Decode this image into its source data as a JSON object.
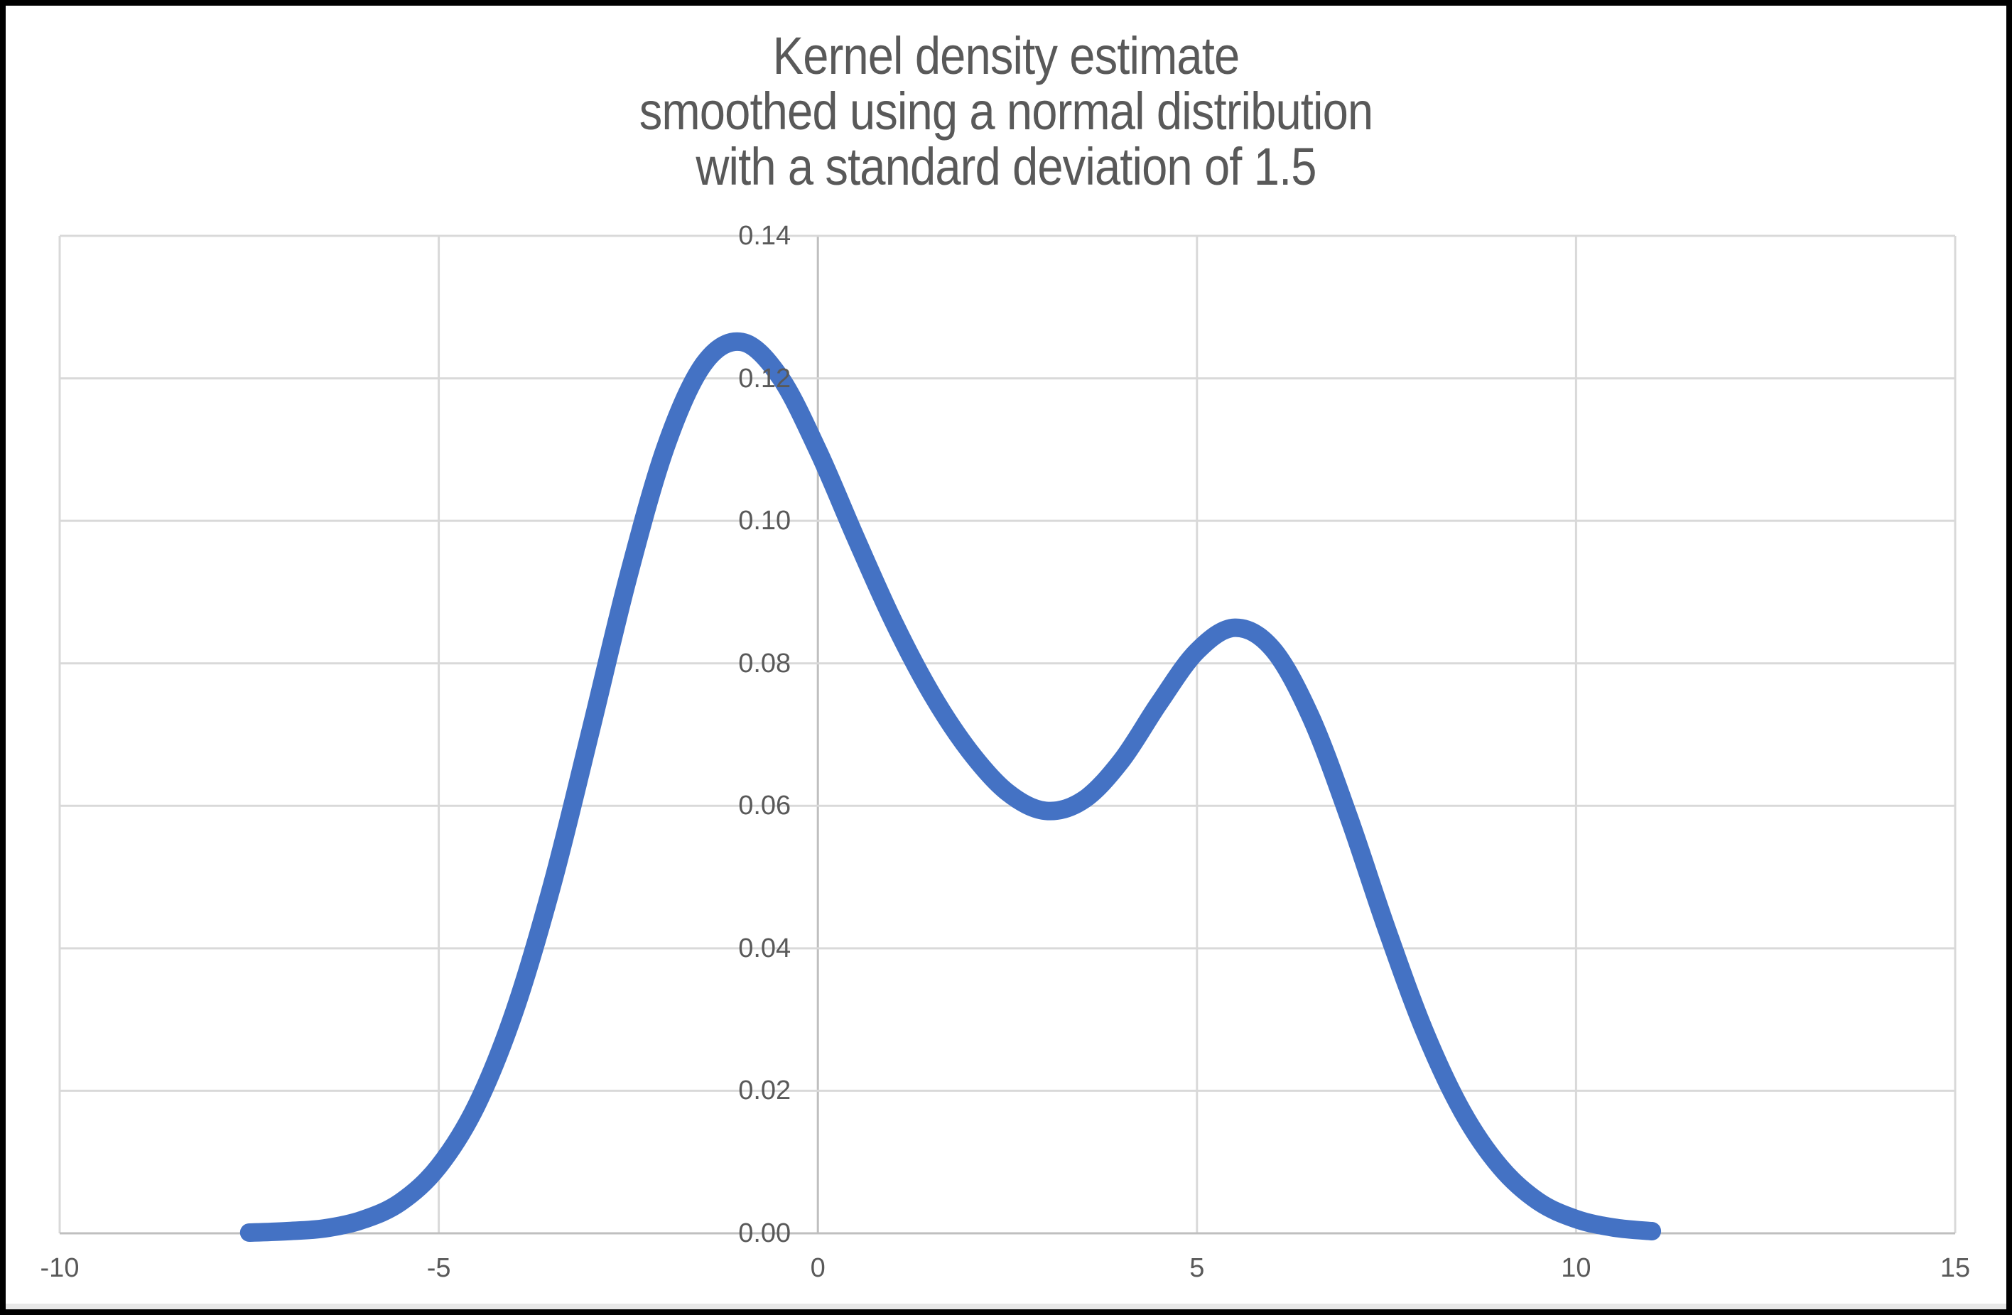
{
  "colors": {
    "line": "#4472C4",
    "gridline": "#D9D9D9",
    "axis_line": "#BFBFBF",
    "text": "#595959"
  },
  "chart_data": {
    "type": "line",
    "title": "Kernel density estimate\nsmoothed using a normal distribution\nwith a standard deviation of 1.5",
    "xlabel": "",
    "ylabel": "",
    "xlim": [
      -10,
      15
    ],
    "ylim": [
      0,
      0.14
    ],
    "grid": true,
    "legend": false,
    "x_ticks": [
      {
        "v": -10,
        "label": "-10"
      },
      {
        "v": -5,
        "label": "-5"
      },
      {
        "v": 0,
        "label": "0"
      },
      {
        "v": 5,
        "label": "5"
      },
      {
        "v": 10,
        "label": "10"
      },
      {
        "v": 15,
        "label": "15"
      }
    ],
    "y_ticks": [
      {
        "v": 0.0,
        "label": "0.00"
      },
      {
        "v": 0.02,
        "label": "0.02"
      },
      {
        "v": 0.04,
        "label": "0.04"
      },
      {
        "v": 0.06,
        "label": "0.06"
      },
      {
        "v": 0.08,
        "label": "0.08"
      },
      {
        "v": 0.1,
        "label": "0.10"
      },
      {
        "v": 0.12,
        "label": "0.12"
      },
      {
        "v": 0.14,
        "label": "0.14"
      }
    ],
    "series": [
      {
        "name": "Kernel density estimate",
        "color": "#4472C4",
        "points": [
          [
            -7.5,
            0.0001
          ],
          [
            -7.0,
            0.0003
          ],
          [
            -6.5,
            0.0007
          ],
          [
            -6.0,
            0.0019
          ],
          [
            -5.5,
            0.0044
          ],
          [
            -5.0,
            0.0094
          ],
          [
            -4.5,
            0.018
          ],
          [
            -4.0,
            0.0312
          ],
          [
            -3.5,
            0.0491
          ],
          [
            -3.0,
            0.0704
          ],
          [
            -2.5,
            0.0922
          ],
          [
            -2.0,
            0.1106
          ],
          [
            -1.5,
            0.1221
          ],
          [
            -1.0,
            0.1251
          ],
          [
            -0.5,
            0.1202
          ],
          [
            0.0,
            0.1099
          ],
          [
            0.5,
            0.0976
          ],
          [
            1.0,
            0.0858
          ],
          [
            1.5,
            0.0757
          ],
          [
            2.0,
            0.0677
          ],
          [
            2.5,
            0.0619
          ],
          [
            3.0,
            0.0593
          ],
          [
            3.5,
            0.0608
          ],
          [
            4.0,
            0.0663
          ],
          [
            4.5,
            0.0744
          ],
          [
            5.0,
            0.0817
          ],
          [
            5.5,
            0.085
          ],
          [
            6.0,
            0.082
          ],
          [
            6.5,
            0.0725
          ],
          [
            7.0,
            0.0585
          ],
          [
            7.5,
            0.0428
          ],
          [
            8.0,
            0.0284
          ],
          [
            8.5,
            0.0171
          ],
          [
            9.0,
            0.0093
          ],
          [
            9.5,
            0.0045
          ],
          [
            10.0,
            0.002
          ],
          [
            10.5,
            0.0008
          ],
          [
            11.0,
            0.0003
          ]
        ]
      }
    ]
  }
}
